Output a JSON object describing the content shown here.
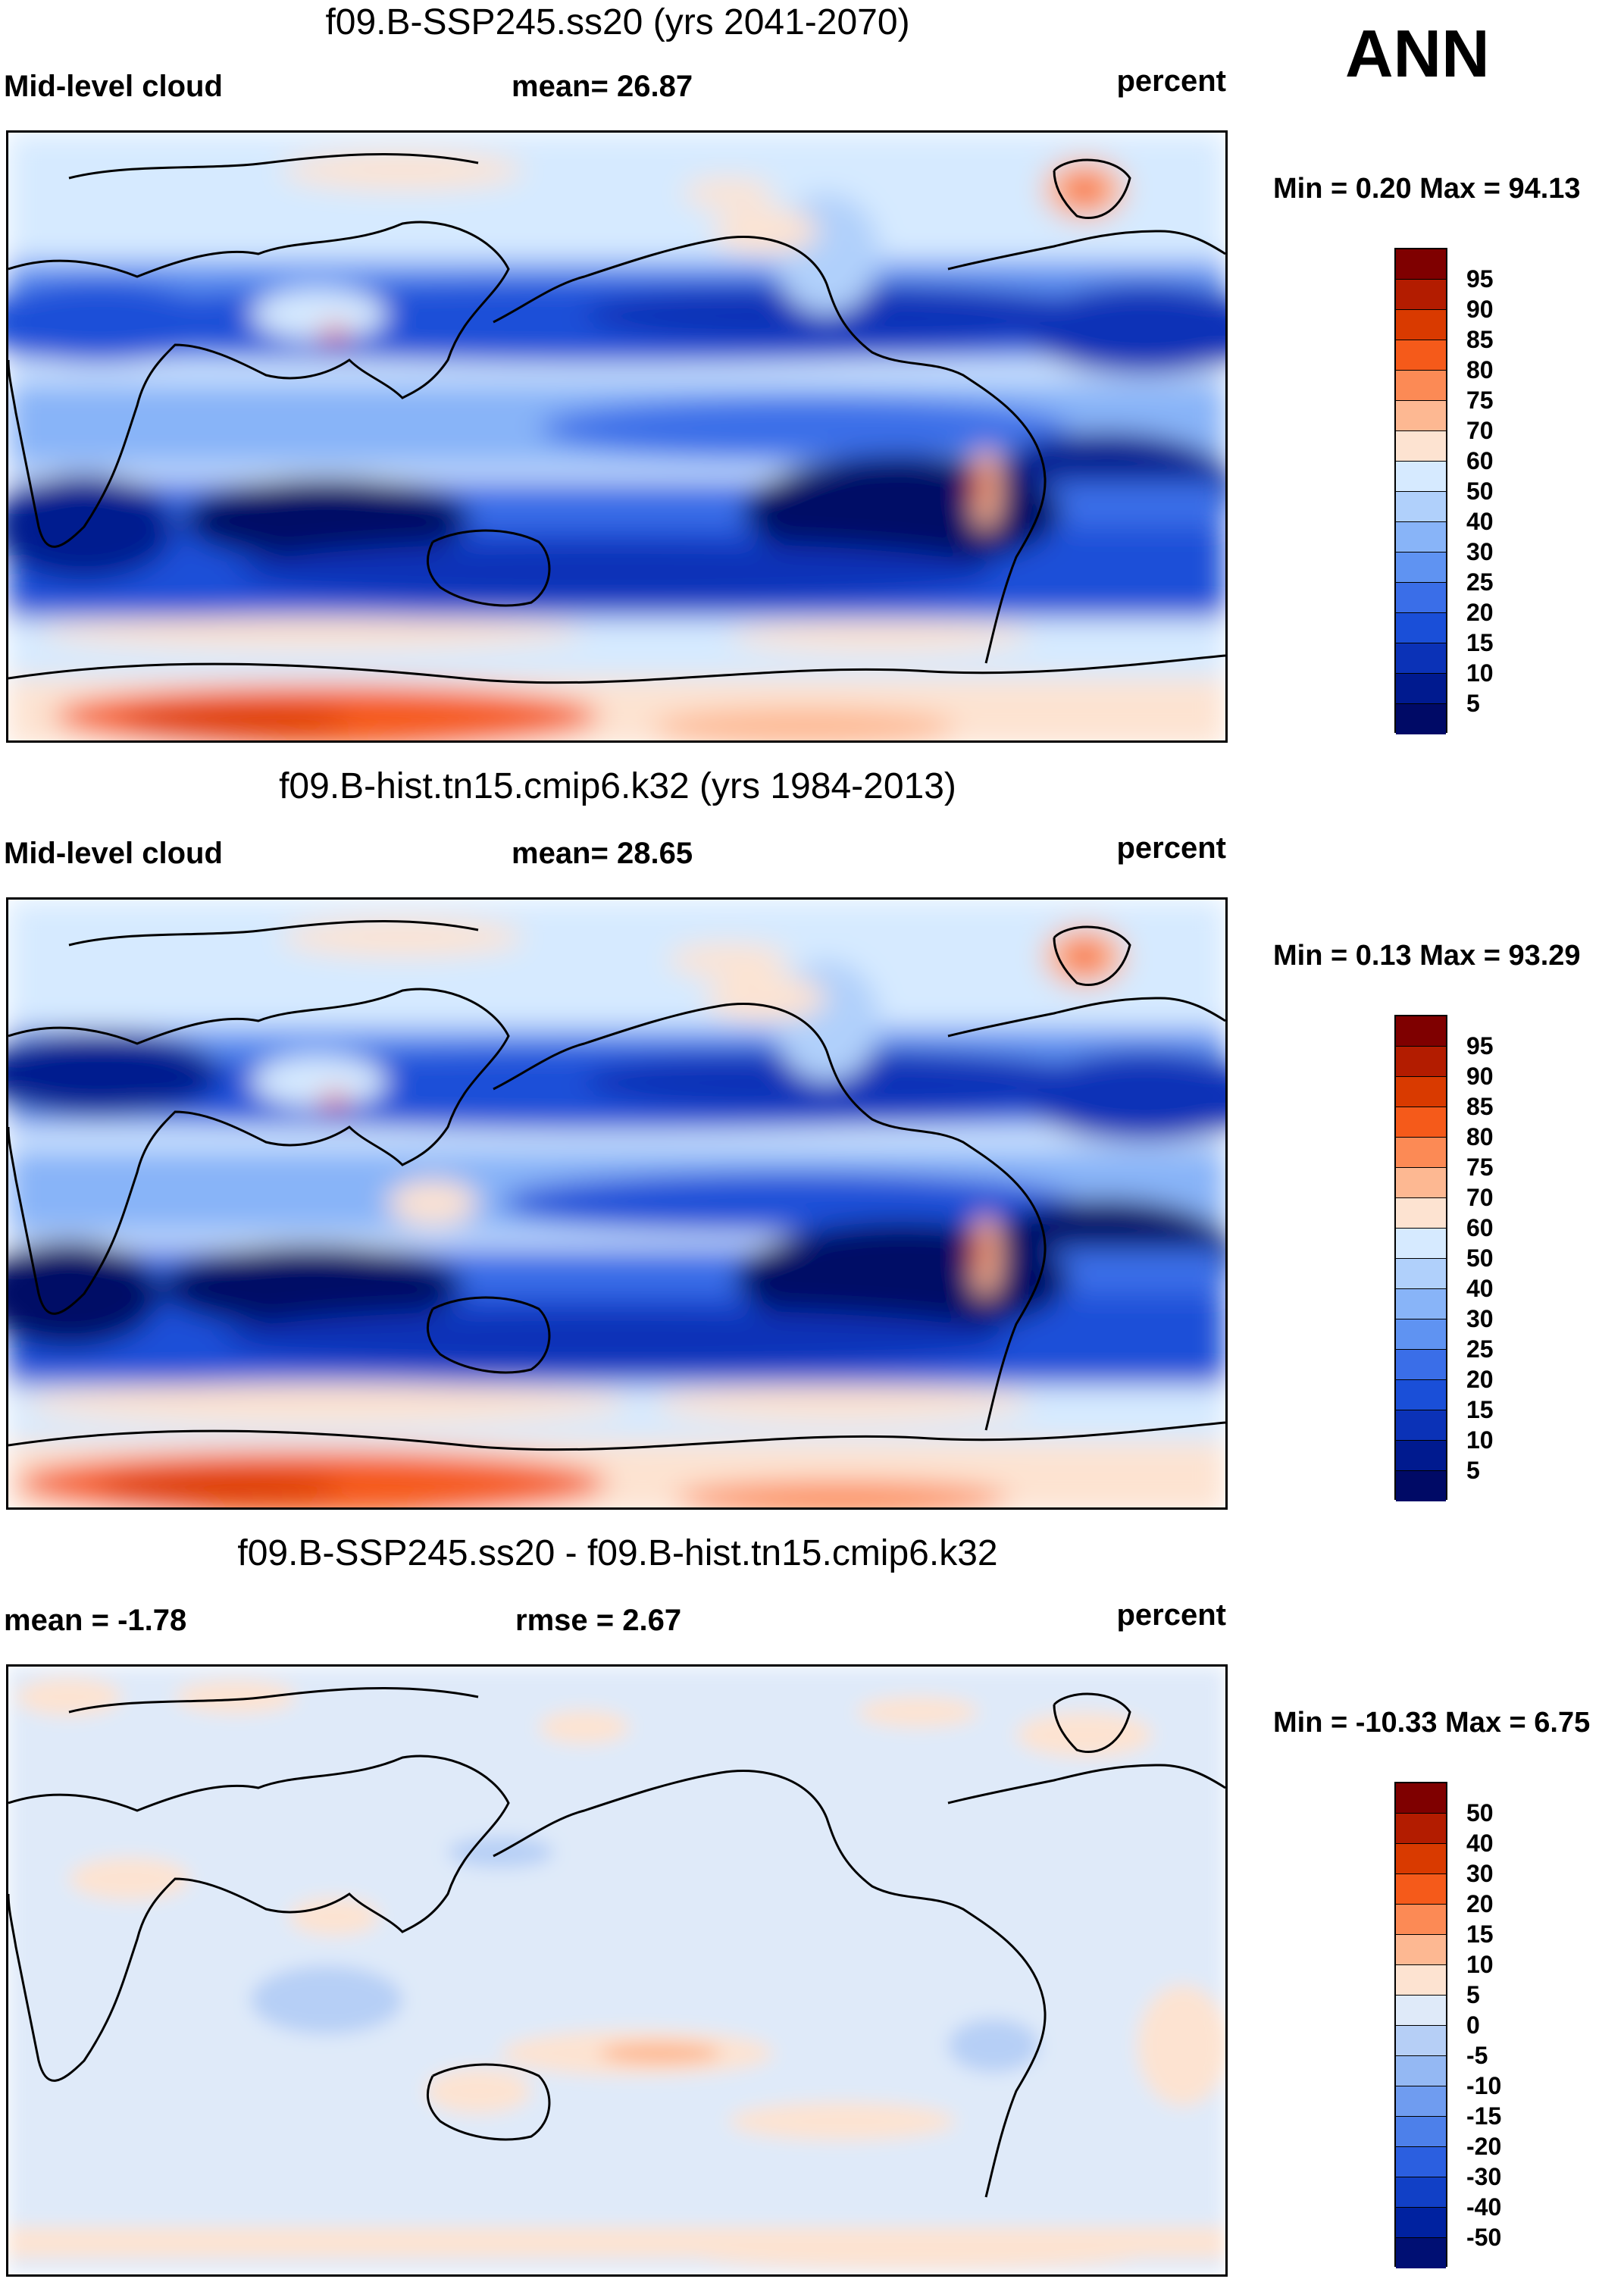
{
  "annotation": "ANN",
  "panels": [
    {
      "title": "f09.B-SSP245.ss20 (yrs 2041-2070)",
      "left_label": "Mid-level cloud",
      "center_label": "mean=  26.87",
      "right_label": "percent",
      "minmax": "Min =   0.20 Max =  94.13",
      "colorbar": {
        "labels": [
          "95",
          "90",
          "85",
          "80",
          "75",
          "70",
          "60",
          "50",
          "40",
          "30",
          "25",
          "20",
          "15",
          "10",
          "5"
        ],
        "colors": [
          "#7f0000",
          "#b31c00",
          "#d93a00",
          "#f55a1a",
          "#fc8a55",
          "#fdb892",
          "#fde3d1",
          "#d6eaff",
          "#b0d0fb",
          "#88b4f8",
          "#5f93f2",
          "#3a6ee8",
          "#1a4fd8",
          "#0b32b7",
          "#001a8f",
          "#000a66"
        ]
      },
      "style": "future"
    },
    {
      "title": "f09.B-hist.tn15.cmip6.k32 (yrs 1984-2013)",
      "left_label": "Mid-level cloud",
      "center_label": "mean=  28.65",
      "right_label": "percent",
      "minmax": "Min =   0.13 Max =  93.29",
      "colorbar": {
        "labels": [
          "95",
          "90",
          "85",
          "80",
          "75",
          "70",
          "60",
          "50",
          "40",
          "30",
          "25",
          "20",
          "15",
          "10",
          "5"
        ],
        "colors": [
          "#7f0000",
          "#b31c00",
          "#d93a00",
          "#f55a1a",
          "#fc8a55",
          "#fdb892",
          "#fde3d1",
          "#d6eaff",
          "#b0d0fb",
          "#88b4f8",
          "#5f93f2",
          "#3a6ee8",
          "#1a4fd8",
          "#0b32b7",
          "#001a8f",
          "#000a66"
        ]
      },
      "style": "hist"
    },
    {
      "title": "f09.B-SSP245.ss20 - f09.B-hist.tn15.cmip6.k32",
      "left_label": "mean =  -1.78",
      "center_label": "rmse =   2.67",
      "right_label": "percent",
      "minmax": "Min = -10.33 Max =   6.75",
      "colorbar": {
        "labels": [
          "50",
          "40",
          "30",
          "20",
          "15",
          "10",
          "5",
          "0",
          "-5",
          "-10",
          "-15",
          "-20",
          "-30",
          "-40",
          "-50"
        ],
        "colors": [
          "#7f0000",
          "#b31c00",
          "#d93a00",
          "#f55a1a",
          "#fc8a55",
          "#fdb892",
          "#fde3d1",
          "#dfeaf9",
          "#b6cff6",
          "#94b8f3",
          "#6f9cf0",
          "#4d80ea",
          "#2b5fe0",
          "#1140c6",
          "#0022a0",
          "#000f73"
        ]
      },
      "style": "diff"
    }
  ]
}
